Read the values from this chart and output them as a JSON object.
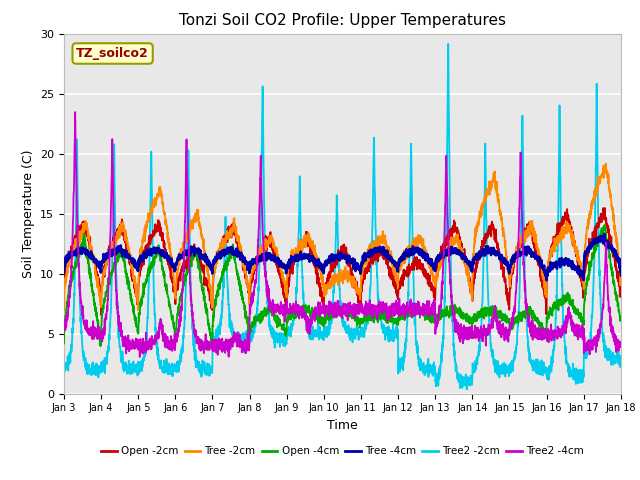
{
  "title": "Tonzi Soil CO2 Profile: Upper Temperatures",
  "xlabel": "Time",
  "ylabel": "Soil Temperature (C)",
  "ylim": [
    0,
    30
  ],
  "xlim": [
    0,
    15
  ],
  "x_tick_labels": [
    "Jan 3",
    "Jan 4",
    "Jan 5",
    "Jan 6",
    "Jan 7",
    "Jan 8",
    "Jan 9",
    "Jan 10",
    "Jan 11",
    "Jan 12",
    "Jan 13",
    "Jan 14",
    "Jan 15",
    "Jan 16",
    "Jan 17",
    "Jan 18"
  ],
  "x_tick_positions": [
    0,
    1,
    2,
    3,
    4,
    5,
    6,
    7,
    8,
    9,
    10,
    11,
    12,
    13,
    14,
    15
  ],
  "legend_entries": [
    "Open -2cm",
    "Tree -2cm",
    "Open -4cm",
    "Tree -4cm",
    "Tree2 -2cm",
    "Tree2 -4cm"
  ],
  "line_colors": [
    "#cc0000",
    "#ff8800",
    "#00aa00",
    "#0000aa",
    "#00ccee",
    "#cc00cc"
  ],
  "annotation_text": "TZ_soilco2",
  "annotation_bg": "#ffffcc",
  "annotation_fg": "#990000",
  "annotation_border": "#999900",
  "plot_bg": "#e8e8e8",
  "fig_bg": "#ffffff",
  "grid_color": "#ffffff",
  "n_days": 15,
  "n_per_day": 200
}
